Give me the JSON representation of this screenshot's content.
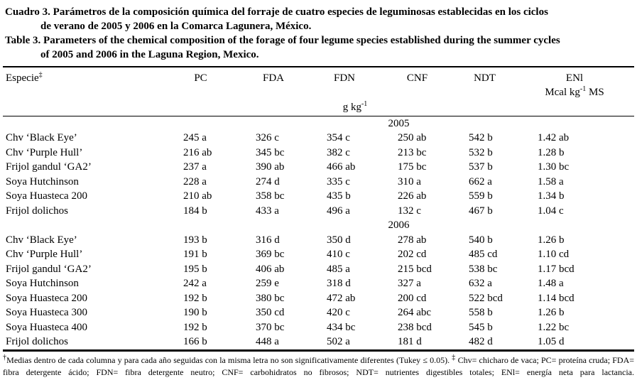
{
  "title_es": {
    "line1": "Cuadro 3. Parámetros de la composición química del forraje de cuatro especies de leguminosas establecidas en los ciclos",
    "line2": "de verano de 2005 y 2006 en la Comarca Lagunera, México."
  },
  "title_en": {
    "line1": "Table 3. Parameters of the chemical composition of the forage of four legume species established during the summer cycles",
    "line2": "of 2005 and 2006 in the Laguna Region, Mexico."
  },
  "table": {
    "headers": {
      "especie": "Especie",
      "especie_sup": "‡",
      "pc": "PC",
      "fda": "FDA",
      "fdn": "FDN",
      "cnf": "CNF",
      "ndt": "NDT",
      "enl": "ENl"
    },
    "units": {
      "enl_pre": "Mcal kg",
      "enl_sup": "-1",
      "enl_post": " MS",
      "g_pre": "g kg",
      "g_sup": "-1"
    },
    "sections": [
      {
        "year": "2005",
        "rows": [
          {
            "name": "Chv ‘Black Eye’",
            "values": [
              "245 a",
              "326 c",
              "354 c",
              "250 ab",
              "542 b",
              "1.42 ab"
            ]
          },
          {
            "name": "Chv ‘Purple Hull’",
            "values": [
              "216 ab",
              "345 bc",
              "382 c",
              "213 bc",
              "532 b",
              "1.28 b"
            ]
          },
          {
            "name": "Frijol gandul ‘GA2’",
            "values": [
              "237 a",
              "390 ab",
              "466 ab",
              "175 bc",
              "537 b",
              "1.30 bc"
            ]
          },
          {
            "name": "Soya Hutchinson",
            "values": [
              "228 a",
              "274 d",
              "335 c",
              "310 a",
              "662 a",
              "1.58 a"
            ]
          },
          {
            "name": "Soya Huasteca 200",
            "values": [
              "210 ab",
              "358 bc",
              "435 b",
              "226 ab",
              "559 b",
              "1.34 b"
            ]
          },
          {
            "name": "Frijol dolichos",
            "values": [
              "184 b",
              "433 a",
              "496 a",
              "132 c",
              "467 b",
              "1.04 c"
            ]
          }
        ]
      },
      {
        "year": "2006",
        "rows": [
          {
            "name": "Chv ‘Black Eye’",
            "values": [
              "193 b",
              "316 d",
              "350 d",
              "278 ab",
              "540 b",
              "1.26 b"
            ]
          },
          {
            "name": "Chv ‘Purple Hull’",
            "values": [
              "191 b",
              "369 bc",
              "410 c",
              "202 cd",
              "485 cd",
              "1.10 cd"
            ]
          },
          {
            "name": "Frijol gandul ‘GA2’",
            "values": [
              "195 b",
              "406 ab",
              "485 a",
              "215 bcd",
              "538 bc",
              "1.17 bcd"
            ]
          },
          {
            "name": "Soya Hutchinson",
            "values": [
              "242 a",
              "259 e",
              "318 d",
              "327 a",
              "632 a",
              "1.48 a"
            ]
          },
          {
            "name": "Soya Huasteca 200",
            "values": [
              "192 b",
              "380 bc",
              "472 ab",
              "200 cd",
              "522 bcd",
              "1.14 bcd"
            ]
          },
          {
            "name": "Soya Huasteca 300",
            "values": [
              "190 b",
              "350 cd",
              "420 c",
              "264 abc",
              "558 b",
              "1.26 b"
            ]
          },
          {
            "name": "Soya Huasteca 400",
            "values": [
              "192 b",
              "370 bc",
              "434 bc",
              "238 bcd",
              "545 b",
              "1.22 bc"
            ]
          },
          {
            "name": "Frijol dolichos",
            "values": [
              "166 b",
              "448 a",
              "502 a",
              "181 d",
              "482 d",
              "1.05 d"
            ]
          }
        ]
      }
    ]
  },
  "footnote": {
    "sup1": "†",
    "line1a": "Medias dentro de cada columna y para cada año seguidas con la misma letra no son significativamente diferentes (Tukey ≤ 0.05). ",
    "sup2": "‡",
    "line1b": " Chv= chicharo de vaca; PC= proteína",
    "line2": "cruda; FDA= fibra detergente ácido; FDN= fibra detergente neutro; CNF= carbohidratos no fibrosos; NDT= nutrientes digestibles totales; ENl= energía neta para lactancia."
  }
}
